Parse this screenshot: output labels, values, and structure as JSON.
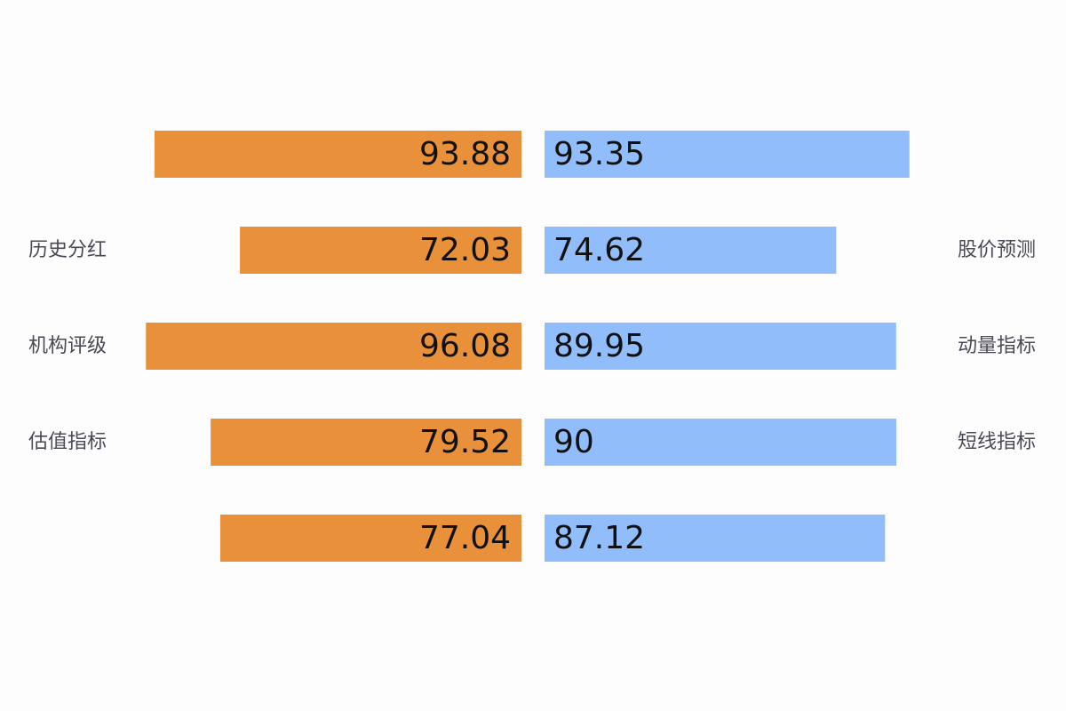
{
  "chart_data": {
    "type": "bar",
    "orientation": "horizontal",
    "layout": "diverging",
    "axis_max": 100,
    "grid": false,
    "legend": "none",
    "left_series": {
      "color": "#e8903a",
      "values": [
        93.88,
        72.03,
        96.08,
        79.52,
        77.04
      ],
      "labels": [
        "",
        "历史分红",
        "机构评级",
        "估值指标",
        ""
      ]
    },
    "right_series": {
      "color": "#91bdfb",
      "values": [
        93.35,
        74.62,
        89.95,
        90,
        87.12
      ],
      "labels": [
        "",
        "股价预测",
        "动量指标",
        "短线指标",
        ""
      ]
    }
  }
}
